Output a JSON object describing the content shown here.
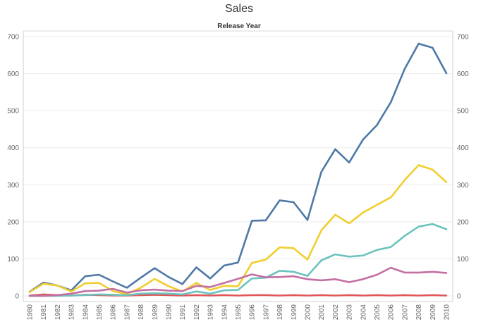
{
  "chart_data": {
    "type": "line",
    "title": "Sales",
    "column_header": "Release Year",
    "xlabel": "",
    "ylabel": "",
    "ylim": [
      0,
      700
    ],
    "yticks": [
      0,
      100,
      200,
      300,
      400,
      500,
      600,
      700
    ],
    "grid": true,
    "legend": "none",
    "x": [
      "1980",
      "1981",
      "1982",
      "1983",
      "1984",
      "1985",
      "1986",
      "1987",
      "1988",
      "1989",
      "1990",
      "1991",
      "1992",
      "1993",
      "1994",
      "1995",
      "1996",
      "1997",
      "1998",
      "1999",
      "2000",
      "2001",
      "2002",
      "2003",
      "2004",
      "2005",
      "2006",
      "2007",
      "2008",
      "2009",
      "2010"
    ],
    "series": [
      {
        "color": "#4e79a7",
        "values": [
          11,
          36,
          28,
          15,
          53,
          57,
          39,
          22,
          49,
          75,
          51,
          32,
          77,
          47,
          82,
          90,
          203,
          204,
          258,
          253,
          205,
          335,
          396,
          360,
          422,
          461,
          523,
          613,
          681,
          670,
          601
        ]
      },
      {
        "color": "#f1ce2e",
        "values": [
          10,
          33,
          28,
          12,
          34,
          35,
          13,
          5,
          22,
          46,
          26,
          12,
          35,
          16,
          27,
          26,
          89,
          98,
          131,
          129,
          98,
          177,
          219,
          196,
          225,
          246,
          266,
          313,
          353,
          341,
          307
        ]
      },
      {
        "color": "#e15759",
        "values": [
          1,
          4,
          2,
          1,
          3,
          2,
          1,
          1,
          2,
          3,
          2,
          1,
          2,
          1,
          2,
          1,
          2,
          2,
          1,
          2,
          1,
          2,
          1,
          2,
          1,
          2,
          1,
          2,
          1,
          2,
          1
        ]
      },
      {
        "color": "#6cc3bd",
        "values": [
          0,
          0,
          0,
          1,
          2,
          4,
          3,
          2,
          6,
          7,
          6,
          4,
          12,
          6,
          15,
          16,
          47,
          49,
          68,
          65,
          54,
          96,
          112,
          106,
          109,
          124,
          132,
          162,
          187,
          194,
          180
        ]
      },
      {
        "color": "#c36fa3",
        "values": [
          0,
          0,
          2,
          6,
          13,
          14,
          19,
          9,
          15,
          17,
          14,
          13,
          27,
          24,
          35,
          46,
          58,
          50,
          51,
          53,
          45,
          42,
          45,
          37,
          45,
          57,
          76,
          63,
          63,
          65,
          62
        ]
      }
    ]
  }
}
